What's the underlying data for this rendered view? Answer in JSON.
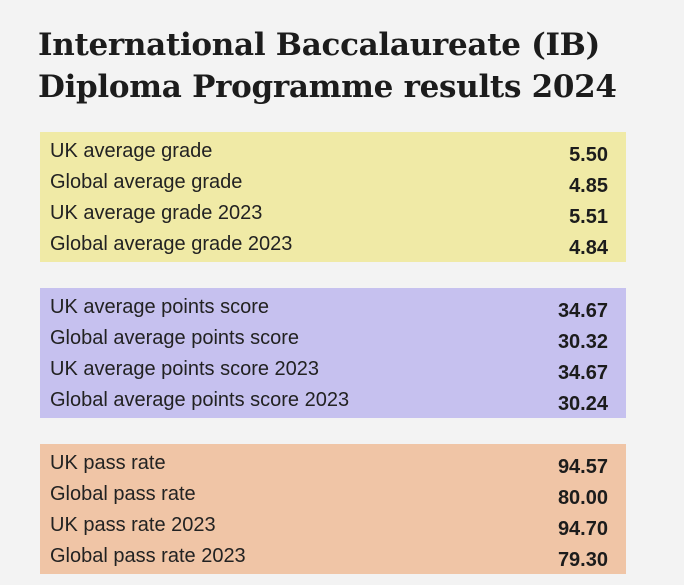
{
  "title": {
    "line1": "International Baccalaureate (IB)",
    "line2": "Diploma Programme results 2024"
  },
  "panels": [
    {
      "color": "#f0eaa6",
      "rows": [
        {
          "label": "UK average grade",
          "value": "5.50"
        },
        {
          "label": "Global average grade",
          "value": "4.85"
        },
        {
          "label": "UK average grade 2023",
          "value": "5.51"
        },
        {
          "label": "Global average grade 2023",
          "value": "4.84"
        }
      ]
    },
    {
      "color": "#c6c1ef",
      "rows": [
        {
          "label": "UK average points score",
          "value": "34.67"
        },
        {
          "label": "Global average points score",
          "value": "30.32"
        },
        {
          "label": "UK average points score 2023",
          "value": "34.67"
        },
        {
          "label": "Global average points score 2023",
          "value": "30.24"
        }
      ]
    },
    {
      "color": "#f0c5a6",
      "rows": [
        {
          "label": "UK pass rate",
          "value": "94.57"
        },
        {
          "label": "Global pass rate",
          "value": "80.00"
        },
        {
          "label": "UK pass rate 2023",
          "value": "94.70"
        },
        {
          "label": "Global pass rate 2023",
          "value": "79.30"
        }
      ]
    }
  ]
}
